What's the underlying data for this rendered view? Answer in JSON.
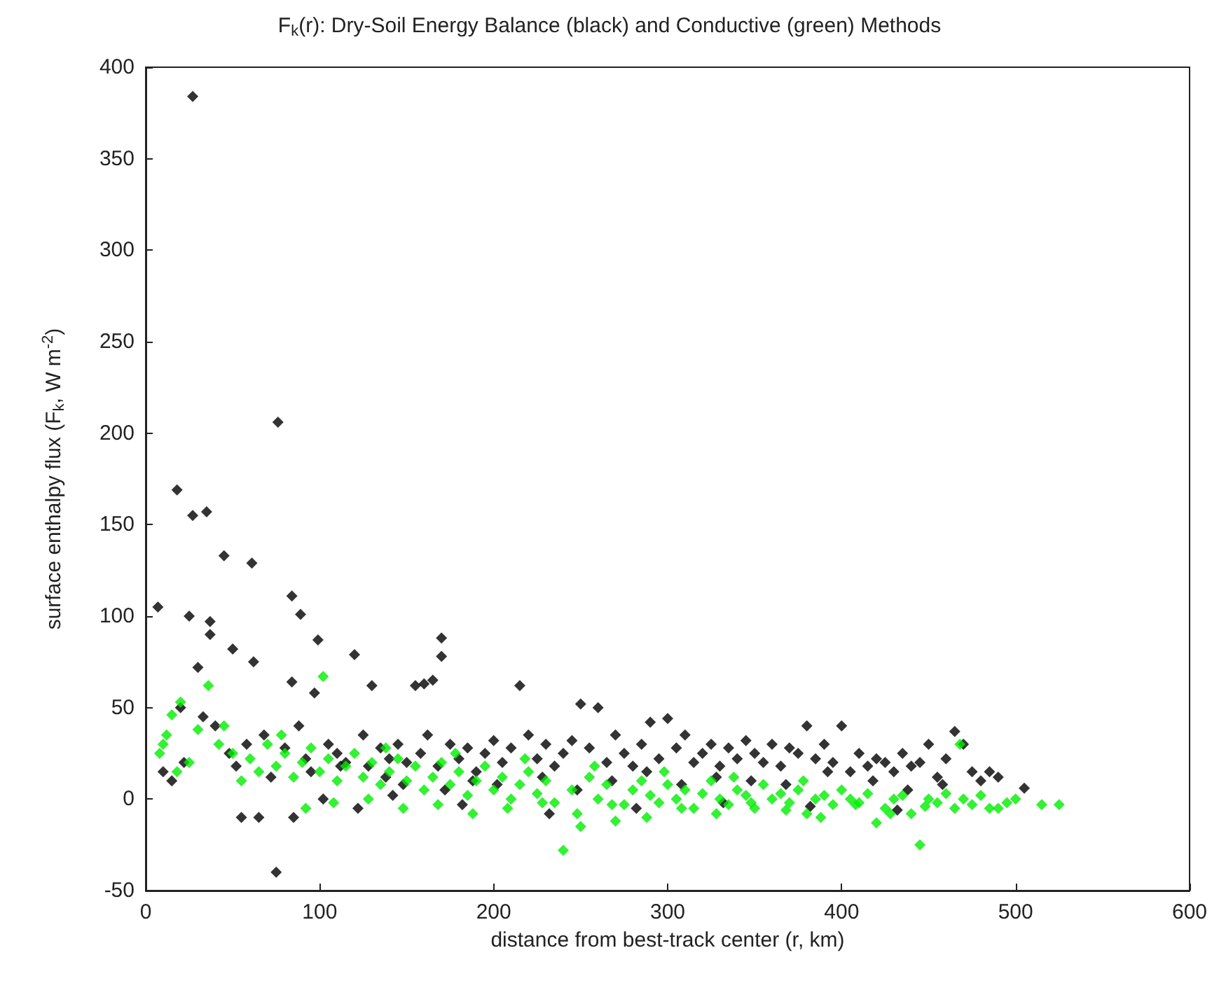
{
  "chart_data": {
    "type": "scatter",
    "title": "F$_{k}$(r): Dry-Soil Energy Balance (black) and Conductive (green) Methods",
    "xlabel": "distance from best-track center (r, km)",
    "ylabel": "surface enthalpy flux (F$_{k}$, W m$^{-2}$)",
    "xlim": [
      0,
      600
    ],
    "xticks": [
      0,
      100,
      200,
      300,
      400,
      500,
      600
    ],
    "ylim": [
      -50,
      400
    ],
    "yticks": [
      -50,
      0,
      50,
      100,
      150,
      200,
      250,
      300,
      350,
      400
    ],
    "grid": false,
    "marker": "diamond",
    "series": [
      {
        "color": "#000000",
        "x": [
          27,
          76,
          18,
          27,
          35,
          45,
          61,
          84,
          89,
          99,
          120,
          170,
          170,
          7,
          25,
          37,
          37,
          50,
          62,
          84,
          97,
          30,
          20,
          130,
          155,
          160,
          165,
          215,
          75,
          55,
          65,
          85,
          250,
          260,
          290,
          300,
          380,
          400,
          465,
          470,
          450,
          485,
          505,
          490,
          10,
          15,
          22,
          33,
          40,
          48,
          52,
          58,
          68,
          72,
          80,
          88,
          92,
          95,
          105,
          110,
          115,
          125,
          128,
          135,
          140,
          145,
          150,
          158,
          162,
          168,
          175,
          180,
          185,
          190,
          195,
          200,
          205,
          210,
          220,
          225,
          230,
          235,
          240,
          245,
          255,
          265,
          270,
          275,
          280,
          285,
          295,
          305,
          310,
          315,
          320,
          325,
          330,
          335,
          340,
          345,
          350,
          355,
          360,
          365,
          370,
          375,
          385,
          390,
          395,
          405,
          410,
          415,
          420,
          425,
          430,
          435,
          440,
          445,
          455,
          460,
          475,
          480,
          112,
          138,
          148,
          172,
          188,
          202,
          228,
          248,
          268,
          288,
          308,
          328,
          348,
          368,
          392,
          418,
          438,
          458,
          102,
          122,
          142,
          182,
          232,
          282,
          332,
          382,
          432
        ],
        "values": [
          384,
          206,
          169,
          155,
          157,
          133,
          129,
          111,
          101,
          87,
          79,
          88,
          78,
          105,
          100,
          97,
          90,
          82,
          75,
          64,
          58,
          72,
          50,
          62,
          62,
          63,
          65,
          62,
          -40,
          -10,
          -10,
          -10,
          52,
          50,
          42,
          44,
          40,
          40,
          37,
          30,
          30,
          15,
          6,
          12,
          15,
          10,
          20,
          45,
          40,
          25,
          18,
          30,
          35,
          12,
          28,
          40,
          22,
          15,
          30,
          25,
          20,
          35,
          18,
          28,
          22,
          30,
          20,
          25,
          35,
          18,
          30,
          22,
          28,
          15,
          25,
          32,
          20,
          28,
          35,
          22,
          30,
          18,
          25,
          32,
          28,
          20,
          35,
          25,
          18,
          30,
          22,
          28,
          35,
          20,
          25,
          30,
          18,
          28,
          22,
          32,
          25,
          20,
          30,
          18,
          28,
          25,
          22,
          30,
          20,
          15,
          25,
          18,
          22,
          20,
          15,
          25,
          18,
          20,
          12,
          22,
          15,
          10,
          18,
          12,
          8,
          5,
          10,
          8,
          12,
          5,
          10,
          15,
          8,
          12,
          10,
          8,
          15,
          10,
          5,
          8,
          0,
          -5,
          2,
          -3,
          -8,
          -5,
          -2,
          -4,
          -6
        ]
      },
      {
        "color": "#00ee00",
        "x": [
          36,
          102,
          20,
          15,
          10,
          240,
          445,
          525,
          515,
          490,
          420,
          250,
          270,
          8,
          12,
          18,
          25,
          30,
          42,
          50,
          55,
          60,
          65,
          70,
          75,
          80,
          85,
          90,
          95,
          100,
          105,
          110,
          115,
          120,
          125,
          130,
          135,
          140,
          145,
          150,
          155,
          160,
          165,
          170,
          175,
          180,
          185,
          190,
          195,
          200,
          205,
          210,
          215,
          220,
          225,
          230,
          235,
          245,
          255,
          260,
          265,
          275,
          280,
          285,
          290,
          295,
          300,
          305,
          310,
          315,
          320,
          325,
          330,
          335,
          340,
          345,
          350,
          355,
          360,
          365,
          370,
          375,
          380,
          385,
          390,
          395,
          400,
          405,
          410,
          415,
          425,
          430,
          435,
          440,
          450,
          455,
          460,
          465,
          470,
          475,
          480,
          485,
          495,
          500,
          45,
          78,
          92,
          108,
          128,
          148,
          168,
          188,
          208,
          228,
          248,
          268,
          288,
          308,
          328,
          348,
          368,
          388,
          408,
          428,
          448,
          468,
          138,
          178,
          218,
          258,
          298,
          338,
          378
        ],
        "values": [
          62,
          67,
          53,
          46,
          30,
          -28,
          -25,
          -3,
          -3,
          -5,
          -13,
          -15,
          -12,
          25,
          35,
          15,
          20,
          38,
          30,
          25,
          10,
          22,
          15,
          30,
          18,
          25,
          12,
          20,
          28,
          15,
          22,
          10,
          18,
          25,
          12,
          20,
          8,
          15,
          22,
          10,
          18,
          5,
          12,
          20,
          8,
          15,
          2,
          10,
          18,
          5,
          12,
          0,
          8,
          15,
          3,
          10,
          -2,
          5,
          12,
          0,
          8,
          -3,
          5,
          10,
          2,
          -2,
          8,
          0,
          5,
          -5,
          3,
          10,
          0,
          -3,
          5,
          2,
          -5,
          8,
          0,
          3,
          -2,
          5,
          -8,
          0,
          2,
          -3,
          5,
          0,
          -2,
          3,
          -5,
          0,
          2,
          -8,
          0,
          -2,
          3,
          -5,
          0,
          -3,
          2,
          -5,
          -2,
          0,
          40,
          35,
          -5,
          -2,
          0,
          -5,
          -3,
          -8,
          -5,
          -2,
          -8,
          -3,
          -10,
          -5,
          -8,
          -2,
          -6,
          -10,
          -3,
          -8,
          -4,
          30,
          28,
          25,
          22,
          18,
          15,
          12,
          10
        ]
      }
    ]
  }
}
